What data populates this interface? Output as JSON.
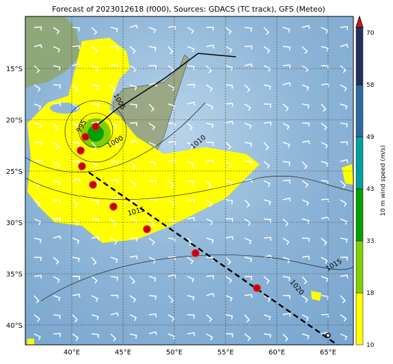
{
  "header": {
    "title": "Forecast of 2023012618 (f000), Sources: GDACS (TC track), GFS (Meteo)"
  },
  "axes": {
    "lon_labels": [
      "40°E",
      "45°E",
      "50°E",
      "55°E",
      "60°E",
      "65°E"
    ],
    "lat_labels": [
      "15°S",
      "20°S",
      "25°S",
      "30°S",
      "35°S",
      "40°S"
    ]
  },
  "colorbar": {
    "label": "10 m wind speed (m/s)",
    "ticks": [
      "10",
      "18",
      "33",
      "43",
      "49",
      "58",
      "70"
    ]
  },
  "contour_labels": [
    "1005",
    "995",
    "1000",
    "1010",
    "1015",
    "1015",
    "1020"
  ]
}
